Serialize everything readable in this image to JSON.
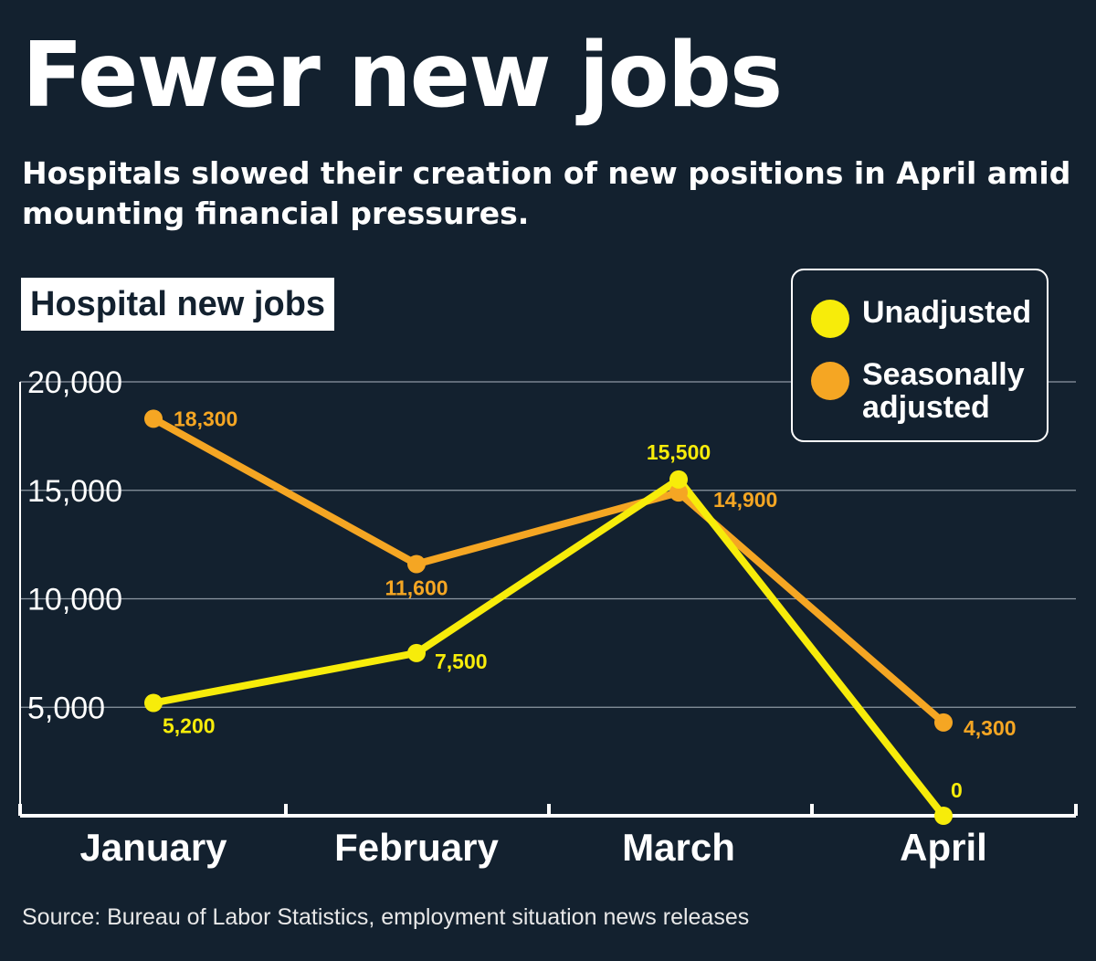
{
  "title": "Fewer new jobs",
  "subtitle": "Hospitals slowed their creation of new positions in April amid mounting financial pressures.",
  "panel_label": "Hospital new jobs",
  "source": "Source: Bureau of Labor Statistics, employment situation news releases",
  "colors": {
    "background": "#13212f",
    "unadjusted": "#f7ec0a",
    "seasonally_adjusted": "#f5a623",
    "grid": "#8e98a3",
    "axis": "#ffffff"
  },
  "legend": {
    "unadjusted": "Unadjusted",
    "seasonally_adjusted": "Seasonally adjusted"
  },
  "chart_data": {
    "type": "line",
    "categories": [
      "January",
      "February",
      "March",
      "April"
    ],
    "series": [
      {
        "key": "seasonally_adjusted",
        "name": "Seasonally adjusted",
        "values": [
          18300,
          11600,
          14900,
          4300
        ],
        "labels": [
          "18,300",
          "11,600",
          "14,900",
          "4,300"
        ]
      },
      {
        "key": "unadjusted",
        "name": "Unadjusted",
        "values": [
          5200,
          7500,
          15500,
          0
        ],
        "labels": [
          "5,200",
          "7,500",
          "15,500",
          "0"
        ]
      }
    ],
    "title": "Hospital new jobs",
    "ylim": [
      0,
      20000
    ],
    "yticks": [
      5000,
      10000,
      15000,
      20000
    ],
    "ytick_labels": [
      "5,000",
      "10,000",
      "15,000",
      "20,000"
    ],
    "grid": true,
    "legend_position": "top-right"
  }
}
